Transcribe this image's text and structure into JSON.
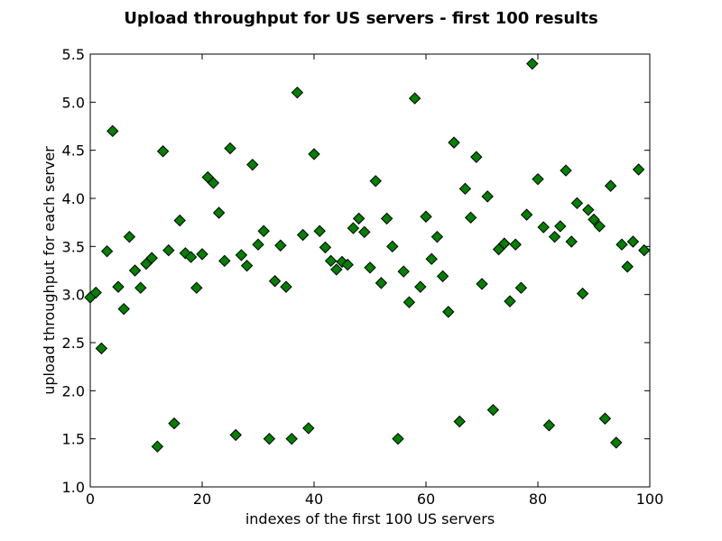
{
  "chart_data": {
    "type": "scatter",
    "title": "Upload throughput for US servers - first 100 results",
    "xlabel": "indexes of the first 100 US servers",
    "ylabel": "upload throughput for each server",
    "xlim": [
      0,
      100
    ],
    "ylim": [
      1.0,
      5.5
    ],
    "xticks": [
      0,
      20,
      40,
      60,
      80,
      100
    ],
    "xtick_labels": [
      "0",
      "20",
      "40",
      "60",
      "80",
      "100"
    ],
    "yticks": [
      1.0,
      1.5,
      2.0,
      2.5,
      3.0,
      3.5,
      4.0,
      4.5,
      5.0,
      5.5
    ],
    "ytick_labels": [
      "1.0",
      "1.5",
      "2.0",
      "2.5",
      "3.0",
      "3.5",
      "4.0",
      "4.5",
      "5.0",
      "5.5"
    ],
    "grid": false,
    "legend": null,
    "marker": "diamond",
    "marker_color": "#008000",
    "marker_edge_color": "#000000",
    "x": [
      0,
      1,
      2,
      3,
      4,
      5,
      6,
      7,
      8,
      9,
      10,
      11,
      12,
      13,
      14,
      15,
      16,
      17,
      18,
      19,
      20,
      21,
      22,
      23,
      24,
      25,
      26,
      27,
      28,
      29,
      30,
      31,
      32,
      33,
      34,
      35,
      36,
      37,
      38,
      39,
      40,
      41,
      42,
      43,
      44,
      45,
      46,
      47,
      48,
      49,
      50,
      51,
      52,
      53,
      54,
      55,
      56,
      57,
      58,
      59,
      60,
      61,
      62,
      63,
      64,
      65,
      66,
      67,
      68,
      69,
      70,
      71,
      72,
      73,
      74,
      75,
      76,
      77,
      78,
      79,
      80,
      81,
      82,
      83,
      84,
      85,
      86,
      87,
      88,
      89,
      90,
      91,
      92,
      93,
      94,
      95,
      96,
      97,
      98,
      99
    ],
    "y": [
      2.97,
      3.02,
      2.44,
      3.45,
      4.7,
      3.08,
      2.85,
      3.6,
      3.25,
      3.07,
      3.32,
      3.38,
      1.42,
      4.49,
      3.46,
      1.66,
      3.77,
      3.43,
      3.39,
      3.07,
      3.42,
      4.22,
      4.16,
      3.85,
      3.35,
      4.52,
      1.54,
      3.41,
      3.3,
      4.35,
      3.52,
      3.66,
      1.5,
      3.14,
      3.51,
      3.08,
      1.5,
      5.1,
      3.62,
      1.61,
      4.46,
      3.66,
      3.49,
      3.35,
      3.26,
      3.34,
      3.31,
      3.69,
      3.79,
      3.65,
      3.28,
      4.18,
      3.12,
      3.79,
      3.5,
      1.5,
      3.24,
      2.92,
      5.04,
      3.08,
      3.81,
      3.37,
      3.6,
      3.19,
      2.82,
      4.58,
      1.68,
      4.1,
      3.8,
      4.43,
      3.11,
      4.02,
      1.8,
      3.47,
      3.53,
      2.93,
      3.52,
      3.07,
      3.83,
      5.4,
      4.2,
      3.7,
      1.64,
      3.6,
      3.71,
      4.29,
      3.55,
      3.95,
      3.01,
      3.88,
      3.78,
      3.71,
      1.71,
      4.13,
      1.46,
      3.52,
      3.29,
      3.55,
      4.3,
      3.46
    ]
  }
}
